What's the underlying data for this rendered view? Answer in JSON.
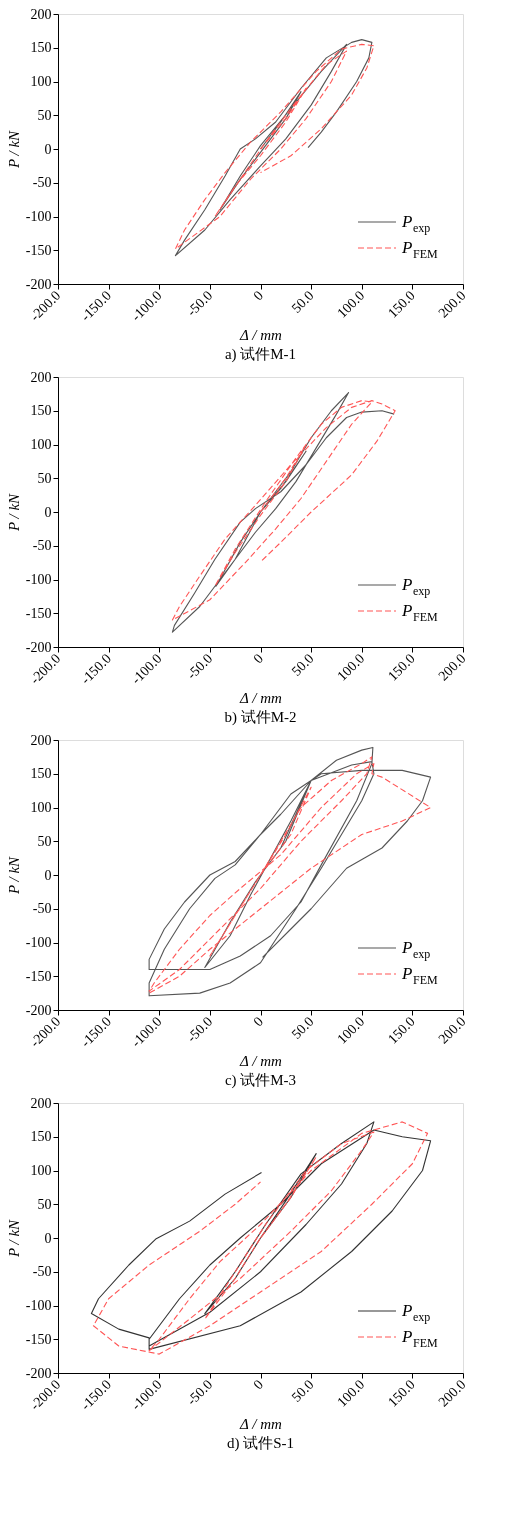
{
  "chart_data": [
    {
      "type": "line",
      "xlabel": "Δ / mm",
      "ylabel": "P / kN",
      "annotations": [
        "a) 试件M-1"
      ],
      "xlim": [
        -200,
        200
      ],
      "ylim": [
        -200,
        200
      ],
      "xticks": [
        {
          "value": -200,
          "label": "-200.0"
        },
        {
          "value": -150,
          "label": "-150.0"
        },
        {
          "value": -100,
          "label": "-100.0"
        },
        {
          "value": -50,
          "label": "-50.0"
        },
        0,
        {
          "value": 50,
          "label": "50.0"
        },
        {
          "value": 100,
          "label": "100.0"
        },
        {
          "value": 150,
          "label": "150.0"
        },
        {
          "value": 200,
          "label": "200.0"
        }
      ],
      "yticks": [
        -200,
        -150,
        -100,
        -50,
        0,
        50,
        100,
        150,
        200
      ],
      "grid": false,
      "legend": "bottom right",
      "marker": "none",
      "series": [
        {
          "name": "P$_{exp}$",
          "color": "#555555",
          "line_style": "solid",
          "x": [
            0,
            20,
            40,
            25,
            5,
            -20,
            -40,
            -20,
            0,
            30,
            60,
            85,
            70,
            50,
            25,
            0,
            -30,
            -55,
            -84,
            -75,
            -55,
            -35,
            -20,
            -5,
            15,
            40,
            65,
            90,
            100,
            110,
            107,
            95,
            75,
            60,
            47
          ],
          "values": [
            0,
            40,
            85,
            45,
            5,
            -45,
            -90,
            -40,
            5,
            60,
            115,
            155,
            115,
            65,
            15,
            -25,
            -75,
            -120,
            -158,
            -135,
            -90,
            -40,
            0,
            15,
            40,
            90,
            135,
            158,
            162,
            158,
            135,
            100,
            55,
            25,
            2
          ]
        },
        {
          "name": "P$_{FEM}$",
          "color": "#ff5555",
          "line_style": "dashed",
          "x": [
            0,
            25,
            45,
            25,
            0,
            -25,
            -45,
            -20,
            5,
            35,
            65,
            85,
            70,
            45,
            20,
            -10,
            -40,
            -84,
            -75,
            -55,
            -35,
            -10,
            20,
            55,
            80,
            100,
            112,
            105,
            90,
            60,
            30,
            0
          ],
          "values": [
            0,
            45,
            90,
            40,
            -10,
            -55,
            -100,
            -45,
            10,
            70,
            125,
            145,
            100,
            45,
            0,
            -45,
            -100,
            -148,
            -120,
            -75,
            -35,
            10,
            55,
            115,
            148,
            155,
            153,
            120,
            80,
            30,
            -10,
            -35
          ]
        }
      ]
    },
    {
      "type": "line",
      "xlabel": "Δ / mm",
      "ylabel": "P / kN",
      "annotations": [
        "b) 试件M-2"
      ],
      "xlim": [
        -200,
        200
      ],
      "ylim": [
        -200,
        200
      ],
      "xticks": [
        {
          "value": -200,
          "label": "-200.0"
        },
        {
          "value": -150,
          "label": "-150.0"
        },
        {
          "value": -100,
          "label": "-100.0"
        },
        {
          "value": -50,
          "label": "-50.0"
        },
        0,
        {
          "value": 50,
          "label": "50.0"
        },
        {
          "value": 100,
          "label": "100.0"
        },
        {
          "value": 150,
          "label": "150.0"
        },
        {
          "value": 200,
          "label": "200.0"
        }
      ],
      "yticks": [
        -200,
        -150,
        -100,
        -50,
        0,
        50,
        100,
        150,
        200
      ],
      "grid": false,
      "legend": "bottom right",
      "marker": "none",
      "series": [
        {
          "name": "P$_{exp}$",
          "color": "#555555",
          "line_style": "solid",
          "x": [
            0,
            25,
            45,
            20,
            0,
            -20,
            -44,
            -25,
            0,
            30,
            50,
            70,
            87,
            75,
            55,
            35,
            15,
            -5,
            -30,
            -60,
            -87,
            -85,
            -65,
            -45,
            -20,
            -5,
            20,
            45,
            65,
            85,
            100,
            120,
            132
          ],
          "values": [
            0,
            45,
            90,
            35,
            0,
            -45,
            -110,
            -70,
            0,
            60,
            110,
            150,
            177,
            145,
            95,
            45,
            5,
            -30,
            -80,
            -140,
            -178,
            -168,
            -120,
            -70,
            -15,
            5,
            30,
            70,
            110,
            140,
            148,
            150,
            145
          ]
        },
        {
          "name": "P$_{FEM}$",
          "color": "#ff5555",
          "line_style": "dashed",
          "x": [
            0,
            25,
            45,
            25,
            0,
            -25,
            -45,
            -25,
            5,
            35,
            60,
            80,
            100,
            110,
            90,
            65,
            40,
            15,
            -15,
            -50,
            -87,
            -80,
            -60,
            -35,
            -5,
            30,
            65,
            90,
            110,
            120,
            133,
            115,
            90,
            50,
            20,
            0
          ],
          "values": [
            0,
            50,
            100,
            45,
            -5,
            -60,
            -110,
            -55,
            15,
            80,
            130,
            155,
            165,
            163,
            130,
            75,
            20,
            -25,
            -75,
            -130,
            -160,
            -140,
            -95,
            -40,
            10,
            70,
            125,
            155,
            165,
            160,
            150,
            105,
            55,
            0,
            -45,
            -74
          ]
        }
      ]
    },
    {
      "type": "line",
      "xlabel": "Δ / mm",
      "ylabel": "P / kN",
      "annotations": [
        "c) 试件M-3"
      ],
      "xlim": [
        -200,
        200
      ],
      "ylim": [
        -200,
        200
      ],
      "xticks": [
        {
          "value": -200,
          "label": "-200.0"
        },
        {
          "value": -150,
          "label": "-150.0"
        },
        {
          "value": -100,
          "label": "-100.0"
        },
        {
          "value": -50,
          "label": "-50.0"
        },
        0,
        {
          "value": 50,
          "label": "50.0"
        },
        {
          "value": 100,
          "label": "100.0"
        },
        {
          "value": 150,
          "label": "150.0"
        },
        {
          "value": 200,
          "label": "200.0"
        }
      ],
      "yticks": [
        -200,
        -150,
        -100,
        -50,
        0,
        50,
        100,
        150,
        200
      ],
      "grid": false,
      "legend": "bottom right",
      "marker": "none",
      "series": [
        {
          "name": "P$_{exp}$",
          "color": "#555555",
          "line_style": "solid",
          "x": [
            0,
            25,
            50,
            30,
            10,
            -10,
            -30,
            -55,
            -30,
            -5,
            20,
            50,
            75,
            100,
            111,
            110,
            95,
            60,
            40,
            10,
            -20,
            -50,
            -110,
            -110,
            -95,
            -75,
            -50,
            -25,
            0,
            20,
            50,
            90,
            110,
            112,
            100,
            60,
            35,
            0,
            -30,
            -60,
            -110,
            -110,
            -95,
            -70,
            -45,
            -25,
            0,
            30,
            60,
            100,
            140,
            168,
            160,
            145,
            120,
            85,
            50,
            30,
            2
          ],
          "values": [
            0,
            50,
            140,
            80,
            25,
            -30,
            -90,
            -137,
            -70,
            -10,
            40,
            140,
            170,
            185,
            189,
            165,
            110,
            15,
            -40,
            -90,
            -120,
            -140,
            -140,
            -125,
            -80,
            -40,
            0,
            20,
            60,
            90,
            140,
            163,
            168,
            150,
            110,
            10,
            -50,
            -130,
            -160,
            -175,
            -179,
            -160,
            -110,
            -50,
            -5,
            15,
            60,
            120,
            150,
            155,
            155,
            145,
            110,
            80,
            40,
            10,
            -50,
            -80,
            -122
          ]
        },
        {
          "name": "P$_{FEM}$",
          "color": "#ff5555",
          "line_style": "dashed",
          "x": [
            0,
            30,
            50,
            25,
            0,
            -25,
            -50,
            -25,
            0,
            40,
            70,
            100,
            110,
            105,
            80,
            40,
            0,
            -40,
            -80,
            -110,
            -105,
            -80,
            -50,
            -20,
            20,
            60,
            95,
            112,
            110,
            120,
            168,
            140,
            100,
            50,
            0,
            -50,
            -80,
            -110
          ],
          "values": [
            0,
            60,
            130,
            60,
            0,
            -60,
            -120,
            -60,
            0,
            100,
            140,
            165,
            175,
            150,
            110,
            50,
            -20,
            -80,
            -140,
            -172,
            -160,
            -110,
            -60,
            -20,
            30,
            100,
            150,
            165,
            150,
            145,
            100,
            80,
            60,
            10,
            -50,
            -110,
            -150,
            -175
          ]
        }
      ]
    },
    {
      "type": "line",
      "xlabel": "Δ / mm",
      "ylabel": "P / kN",
      "annotations": [
        "d) 试件S-1"
      ],
      "xlim": [
        -200,
        200
      ],
      "ylim": [
        -200,
        200
      ],
      "xticks": [
        {
          "value": -200,
          "label": "-200.0"
        },
        {
          "value": -150,
          "label": "-150.0"
        },
        {
          "value": -100,
          "label": "-100.0"
        },
        {
          "value": -50,
          "label": "-50.0"
        },
        0,
        {
          "value": 50,
          "label": "50.0"
        },
        {
          "value": 100,
          "label": "100.0"
        },
        {
          "value": 150,
          "label": "150.0"
        },
        {
          "value": 200,
          "label": "200.0"
        }
      ],
      "yticks": [
        -200,
        -150,
        -100,
        -50,
        0,
        50,
        100,
        150,
        200
      ],
      "grid": false,
      "legend": "bottom right",
      "marker": "none",
      "series": [
        {
          "name": "P$_{exp}$",
          "color": "#333333",
          "line_style": "solid",
          "x": [
            0,
            25,
            55,
            30,
            0,
            -25,
            -55,
            -25,
            5,
            40,
            80,
            112,
            105,
            80,
            45,
            0,
            -50,
            -110,
            -110,
            -80,
            -50,
            -20,
            20,
            60,
            112,
            140,
            168,
            160,
            130,
            90,
            40,
            -20,
            -110,
            -110,
            -140,
            -167,
            -160,
            -130,
            -103,
            -70,
            -35,
            1
          ],
          "values": [
            0,
            55,
            125,
            60,
            0,
            -60,
            -112,
            -50,
            20,
            95,
            140,
            172,
            140,
            80,
            20,
            -50,
            -110,
            -160,
            -150,
            -90,
            -40,
            0,
            50,
            110,
            160,
            150,
            144,
            100,
            40,
            -20,
            -80,
            -130,
            -165,
            -148,
            -135,
            -112,
            -90,
            -40,
            -1,
            25,
            65,
            97
          ]
        },
        {
          "name": "P$_{FEM}$",
          "color": "#ff5555",
          "line_style": "dashed",
          "x": [
            0,
            30,
            55,
            25,
            0,
            -25,
            -55,
            -25,
            5,
            45,
            80,
            112,
            100,
            70,
            30,
            -20,
            -70,
            -110,
            -100,
            -70,
            -40,
            0,
            50,
            100,
            140,
            165,
            150,
            110,
            60,
            0,
            -50,
            -100,
            -140,
            -165,
            -150,
            -110,
            -60,
            -25,
            0
          ],
          "values": [
            0,
            60,
            120,
            50,
            0,
            -60,
            -120,
            -50,
            20,
            100,
            140,
            157,
            130,
            70,
            10,
            -60,
            -120,
            -167,
            -150,
            -90,
            -35,
            20,
            100,
            155,
            172,
            155,
            110,
            50,
            -20,
            -80,
            -130,
            -172,
            -160,
            -130,
            -90,
            -40,
            10,
            50,
            83
          ]
        }
      ]
    }
  ]
}
